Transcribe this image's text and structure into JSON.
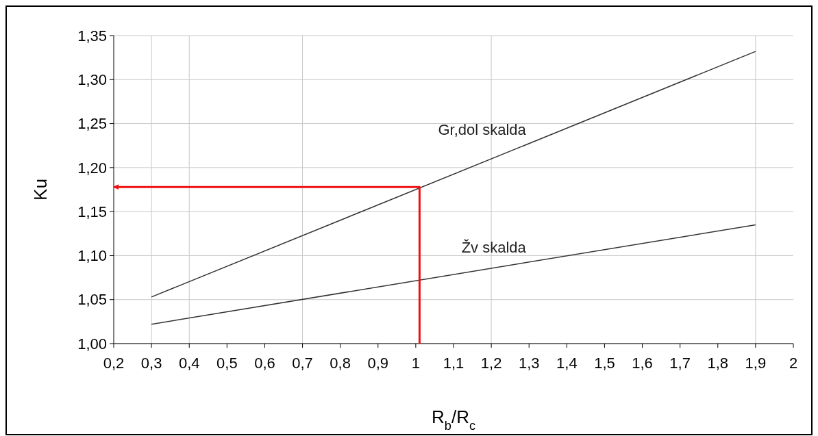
{
  "chart_data": {
    "type": "line",
    "xlabel": "R$_{b}$/R$_{c}$",
    "ylabel": "Ku",
    "xlim": [
      0.2,
      2
    ],
    "ylim": [
      1.0,
      1.35
    ],
    "xticks": [
      {
        "value": 0.2,
        "label": "0,2"
      },
      {
        "value": 0.3,
        "label": "0,3"
      },
      {
        "value": 0.4,
        "label": "0,4"
      },
      {
        "value": 0.5,
        "label": "0,5"
      },
      {
        "value": 0.6,
        "label": "0,6"
      },
      {
        "value": 0.7,
        "label": "0,7"
      },
      {
        "value": 0.8,
        "label": "0,8"
      },
      {
        "value": 0.9,
        "label": "0,9"
      },
      1,
      {
        "value": 1.1,
        "label": "1,1"
      },
      {
        "value": 1.2,
        "label": "1,2"
      },
      {
        "value": 1.3,
        "label": "1,3"
      },
      {
        "value": 1.4,
        "label": "1,4"
      },
      {
        "value": 1.5,
        "label": "1,5"
      },
      {
        "value": 1.6,
        "label": "1,6"
      },
      {
        "value": 1.7,
        "label": "1,7"
      },
      {
        "value": 1.8,
        "label": "1,8"
      },
      {
        "value": 1.9,
        "label": "1,9"
      },
      2
    ],
    "yticks": [
      {
        "value": 1.0,
        "label": "1,00"
      },
      {
        "value": 1.05,
        "label": "1,05"
      },
      {
        "value": 1.1,
        "label": "1,10"
      },
      {
        "value": 1.15,
        "label": "1,15"
      },
      {
        "value": 1.2,
        "label": "1,20"
      },
      {
        "value": 1.25,
        "label": "1,25"
      },
      {
        "value": 1.3,
        "label": "1,30"
      },
      {
        "value": 1.35,
        "label": "1,35"
      }
    ],
    "grid": "y",
    "ref_lines": [
      {
        "axis": "x",
        "value": 0.3,
        "color": "#c8c8c8"
      },
      {
        "axis": "x",
        "value": 0.4,
        "color": "#c8c8c8"
      },
      {
        "axis": "x",
        "value": 0.7,
        "color": "#c8c8c8"
      },
      {
        "axis": "x",
        "value": 1.2,
        "color": "#c8c8c8"
      },
      {
        "axis": "x",
        "value": 1.9,
        "color": "#c8c8c8"
      }
    ],
    "series": [
      {
        "name": "Gr,dol skalda",
        "color": "#333333",
        "x": [
          0.3,
          1.9
        ],
        "values": [
          1.053,
          1.332
        ]
      },
      {
        "name": "Žv skalda",
        "color": "#333333",
        "x": [
          0.3,
          1.9
        ],
        "values": [
          1.022,
          1.135
        ]
      },
      {
        "color": "#ee1111",
        "x": [
          1.01,
          1.01,
          0.2
        ],
        "values": [
          1.0,
          1.178,
          1.178
        ]
      }
    ]
  }
}
